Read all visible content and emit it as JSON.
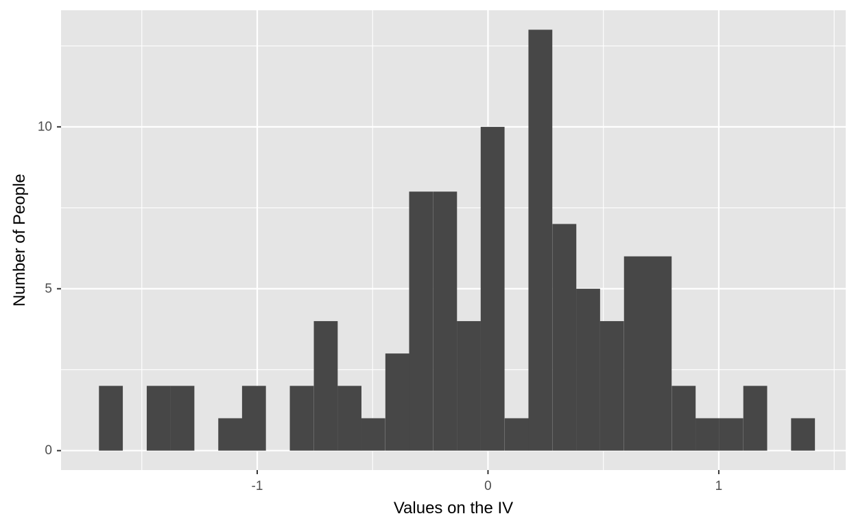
{
  "chart_data": {
    "type": "bar",
    "subtype": "histogram",
    "xlabel": "Values on the IV",
    "ylabel": "Number of People",
    "xlim": [
      -1.85,
      1.55
    ],
    "ylim": [
      -0.6,
      13.6
    ],
    "x_ticks": [
      -1,
      0,
      1
    ],
    "y_ticks": [
      0,
      5,
      10
    ],
    "x_tick_labels": [
      "-1",
      "0",
      "1"
    ],
    "y_tick_labels": [
      "0",
      "5",
      "10"
    ],
    "bin_width": 0.1034,
    "bins": [
      {
        "x": -1.634,
        "count": 2
      },
      {
        "x": -1.531,
        "count": 0
      },
      {
        "x": -1.427,
        "count": 2
      },
      {
        "x": -1.324,
        "count": 2
      },
      {
        "x": -1.22,
        "count": 0
      },
      {
        "x": -1.117,
        "count": 1
      },
      {
        "x": -1.014,
        "count": 2
      },
      {
        "x": -0.91,
        "count": 0
      },
      {
        "x": -0.807,
        "count": 2
      },
      {
        "x": -0.703,
        "count": 4
      },
      {
        "x": -0.6,
        "count": 2
      },
      {
        "x": -0.497,
        "count": 1
      },
      {
        "x": -0.393,
        "count": 3
      },
      {
        "x": -0.29,
        "count": 8
      },
      {
        "x": -0.186,
        "count": 8
      },
      {
        "x": -0.083,
        "count": 4
      },
      {
        "x": 0.02,
        "count": 10
      },
      {
        "x": 0.124,
        "count": 1
      },
      {
        "x": 0.227,
        "count": 13
      },
      {
        "x": 0.331,
        "count": 7
      },
      {
        "x": 0.434,
        "count": 5
      },
      {
        "x": 0.537,
        "count": 4
      },
      {
        "x": 0.641,
        "count": 6
      },
      {
        "x": 0.744,
        "count": 6
      },
      {
        "x": 0.848,
        "count": 2
      },
      {
        "x": 0.951,
        "count": 1
      },
      {
        "x": 1.054,
        "count": 1
      },
      {
        "x": 1.158,
        "count": 2
      },
      {
        "x": 1.261,
        "count": 0
      },
      {
        "x": 1.365,
        "count": 1
      }
    ],
    "grid": true,
    "colors": {
      "panel_background": "#e5e5e5",
      "grid": "#ffffff",
      "bar_fill": "#474747",
      "tick_mark": "#333333"
    }
  }
}
